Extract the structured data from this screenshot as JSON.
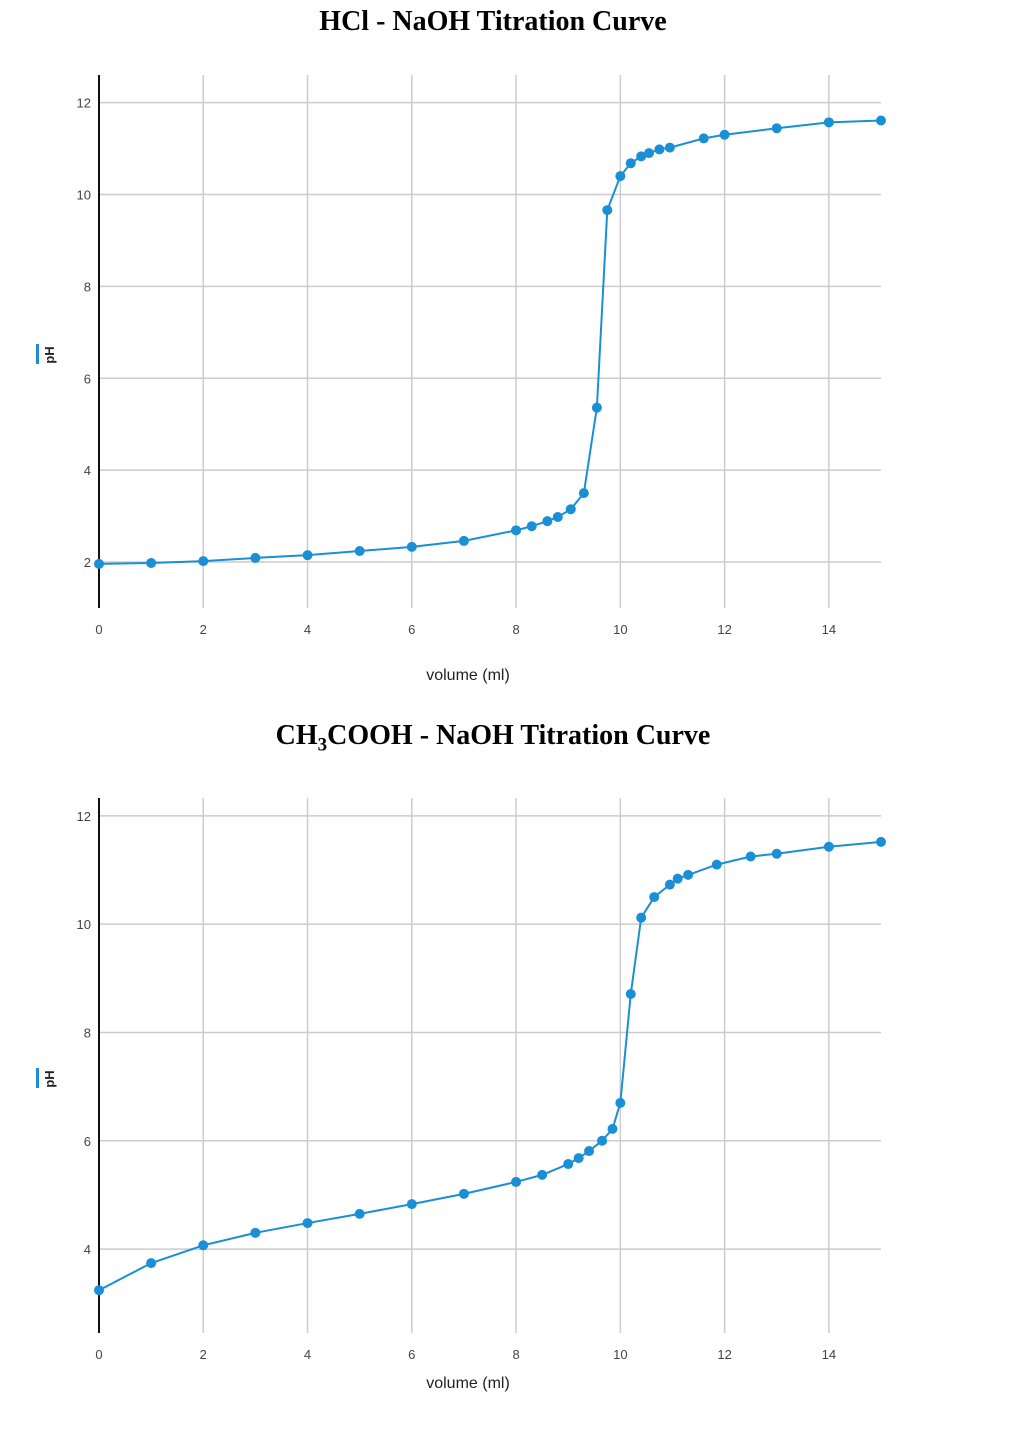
{
  "charts_meta": {
    "line_color": "#1a8fd6",
    "grid_color": "#cccccc"
  },
  "chart_data": [
    {
      "type": "line",
      "title": "HCl - NaOH Titration Curve",
      "xlabel": "volume (ml)",
      "ylabel": "pH",
      "xlim": [
        0,
        15
      ],
      "ylim": [
        1,
        12.6
      ],
      "xticks": [
        0,
        2,
        4,
        6,
        8,
        10,
        12,
        14
      ],
      "yticks": [
        2,
        4,
        6,
        8,
        10,
        12
      ],
      "grid": true,
      "x": [
        0,
        1,
        2,
        3,
        4,
        5,
        6,
        7,
        8,
        8.3,
        8.6,
        8.8,
        9.05,
        9.3,
        9.55,
        9.75,
        10.0,
        10.2,
        10.4,
        10.55,
        10.75,
        10.95,
        11.6,
        12,
        13,
        14,
        15
      ],
      "y": [
        1.96,
        1.98,
        2.02,
        2.09,
        2.15,
        2.24,
        2.33,
        2.46,
        2.69,
        2.78,
        2.89,
        2.98,
        3.15,
        3.5,
        5.36,
        9.66,
        10.4,
        10.68,
        10.83,
        10.9,
        10.98,
        11.02,
        11.22,
        11.3,
        11.44,
        11.57,
        11.61
      ]
    },
    {
      "type": "line",
      "title_parts": [
        "CH",
        "3",
        "COOH - NaOH Titration Curve"
      ],
      "xlabel": "volume (ml)",
      "ylabel": "pH",
      "xlim": [
        0,
        15
      ],
      "ylim": [
        2.45,
        12.33
      ],
      "xticks": [
        0,
        2,
        4,
        6,
        8,
        10,
        12,
        14
      ],
      "yticks": [
        4,
        6,
        8,
        10,
        12
      ],
      "grid": true,
      "x": [
        0,
        1,
        2,
        3,
        4,
        5,
        6,
        7,
        8,
        8.5,
        9,
        9.2,
        9.4,
        9.65,
        9.85,
        10.0,
        10.2,
        10.4,
        10.65,
        10.95,
        11.1,
        11.3,
        11.85,
        12.5,
        13,
        14,
        15
      ],
      "y": [
        3.24,
        3.74,
        4.07,
        4.3,
        4.48,
        4.65,
        4.83,
        5.02,
        5.24,
        5.37,
        5.57,
        5.68,
        5.81,
        6.0,
        6.22,
        6.7,
        8.71,
        10.12,
        10.5,
        10.73,
        10.84,
        10.91,
        11.1,
        11.25,
        11.3,
        11.43,
        11.52
      ]
    }
  ]
}
